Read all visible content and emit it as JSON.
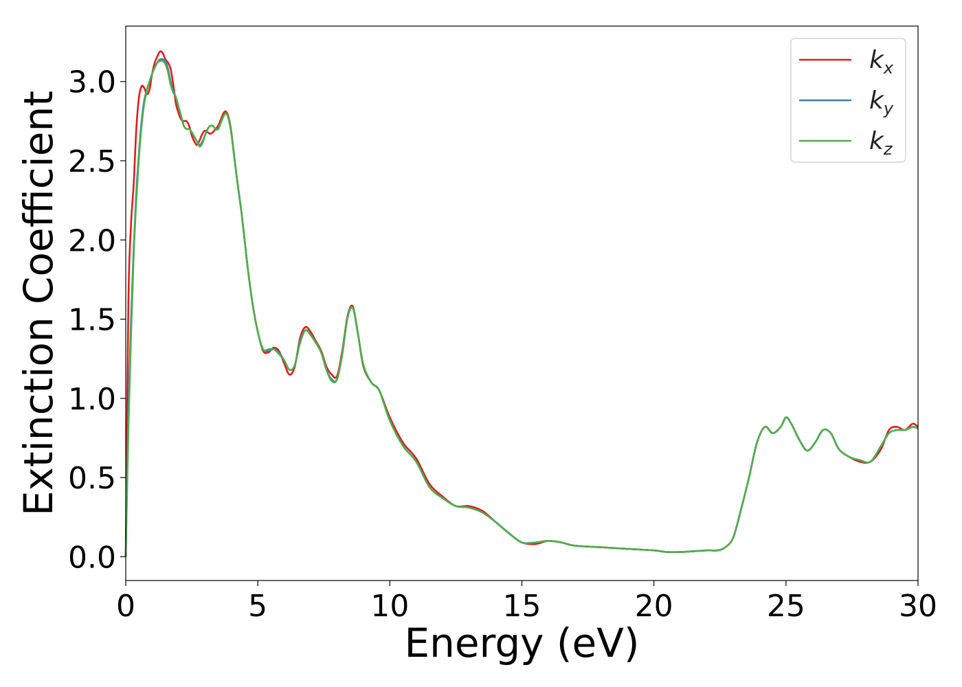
{
  "chart_data": {
    "type": "line",
    "xlabel": "Energy (eV)",
    "ylabel": "Extinction Coefficient",
    "xlim": [
      0,
      30
    ],
    "ylim": [
      -0.15,
      3.35
    ],
    "xticks": [
      "0",
      "5",
      "10",
      "15",
      "20",
      "25",
      "30"
    ],
    "yticks": [
      "0.0",
      "0.5",
      "1.0",
      "1.5",
      "2.0",
      "2.5",
      "3.0"
    ],
    "grid": false,
    "legend_position": "top-right",
    "series": [
      {
        "name": "k",
        "subscript": "x",
        "color": "#e31a1c",
        "x": [
          0,
          0.1,
          0.2,
          0.3,
          0.4,
          0.5,
          0.6,
          0.7,
          0.8,
          0.9,
          1.0,
          1.1,
          1.2,
          1.3,
          1.4,
          1.5,
          1.6,
          1.7,
          1.8,
          1.9,
          2.0,
          2.1,
          2.2,
          2.3,
          2.4,
          2.5,
          2.6,
          2.7,
          2.8,
          2.9,
          3.0,
          3.1,
          3.2,
          3.3,
          3.4,
          3.5,
          3.6,
          3.7,
          3.8,
          3.9,
          4.0,
          4.2,
          4.4,
          4.6,
          4.8,
          5.0,
          5.2,
          5.4,
          5.6,
          5.8,
          6.0,
          6.2,
          6.4,
          6.6,
          6.8,
          7.0,
          7.2,
          7.4,
          7.6,
          7.8,
          8.0,
          8.2,
          8.4,
          8.6,
          8.8,
          9.0,
          9.3,
          9.6,
          10.0,
          10.5,
          11.0,
          11.5,
          12.0,
          12.5,
          13.0,
          13.5,
          14.0,
          14.5,
          15.0,
          15.5,
          16.0,
          16.5,
          17.0,
          18.0,
          19.0,
          20.0,
          20.5,
          21.0,
          22.0,
          22.4,
          22.7,
          23.0,
          23.3,
          23.6,
          23.9,
          24.2,
          24.5,
          24.8,
          25.0,
          25.2,
          25.5,
          25.8,
          26.1,
          26.4,
          26.7,
          27.0,
          27.4,
          27.8,
          28.2,
          28.6,
          28.9,
          29.2,
          29.5,
          29.8,
          30.0
        ],
        "y": [
          0.0,
          1.6,
          2.1,
          2.35,
          2.7,
          2.9,
          2.97,
          2.96,
          2.92,
          2.95,
          3.05,
          3.12,
          3.16,
          3.19,
          3.18,
          3.14,
          3.12,
          3.08,
          2.98,
          2.86,
          2.8,
          2.76,
          2.75,
          2.75,
          2.72,
          2.66,
          2.62,
          2.6,
          2.63,
          2.67,
          2.69,
          2.68,
          2.67,
          2.68,
          2.7,
          2.72,
          2.76,
          2.8,
          2.81,
          2.77,
          2.68,
          2.4,
          2.15,
          1.85,
          1.6,
          1.42,
          1.3,
          1.29,
          1.32,
          1.3,
          1.22,
          1.15,
          1.2,
          1.38,
          1.45,
          1.42,
          1.36,
          1.3,
          1.2,
          1.15,
          1.14,
          1.3,
          1.52,
          1.58,
          1.4,
          1.2,
          1.1,
          1.05,
          0.88,
          0.72,
          0.62,
          0.46,
          0.38,
          0.32,
          0.32,
          0.29,
          0.22,
          0.15,
          0.09,
          0.08,
          0.1,
          0.09,
          0.07,
          0.06,
          0.05,
          0.04,
          0.03,
          0.03,
          0.04,
          0.04,
          0.06,
          0.12,
          0.3,
          0.5,
          0.72,
          0.82,
          0.78,
          0.82,
          0.88,
          0.84,
          0.74,
          0.67,
          0.72,
          0.8,
          0.78,
          0.68,
          0.63,
          0.6,
          0.6,
          0.68,
          0.8,
          0.82,
          0.8,
          0.84,
          0.82
        ],
        "name_suffix": ""
      },
      {
        "name": "k",
        "subscript": "y",
        "color": "#377eb8",
        "x": [
          0,
          0.1,
          0.2,
          0.3,
          0.4,
          0.5,
          0.6,
          0.7,
          0.8,
          0.9,
          1.0,
          1.1,
          1.2,
          1.3,
          1.4,
          1.5,
          1.6,
          1.7,
          1.8,
          1.9,
          2.0,
          2.1,
          2.2,
          2.3,
          2.4,
          2.5,
          2.6,
          2.7,
          2.8,
          2.9,
          3.0,
          3.1,
          3.2,
          3.3,
          3.4,
          3.5,
          3.6,
          3.7,
          3.8,
          3.9,
          4.0,
          4.2,
          4.4,
          4.6,
          4.8,
          5.0,
          5.2,
          5.4,
          5.6,
          5.8,
          6.0,
          6.2,
          6.4,
          6.6,
          6.8,
          7.0,
          7.2,
          7.4,
          7.6,
          7.8,
          8.0,
          8.2,
          8.4,
          8.6,
          8.8,
          9.0,
          9.3,
          9.6,
          10.0,
          10.5,
          11.0,
          11.5,
          12.0,
          12.5,
          13.0,
          13.5,
          14.0,
          14.5,
          15.0,
          15.5,
          16.0,
          16.5,
          17.0,
          18.0,
          19.0,
          20.0,
          20.5,
          21.0,
          22.0,
          22.4,
          22.7,
          23.0,
          23.3,
          23.6,
          23.9,
          24.2,
          24.5,
          24.8,
          25.0,
          25.2,
          25.5,
          25.8,
          26.1,
          26.4,
          26.7,
          27.0,
          27.4,
          27.8,
          28.2,
          28.6,
          28.9,
          29.2,
          29.5,
          29.8,
          30.0
        ],
        "y": [
          0.0,
          0.9,
          1.5,
          1.95,
          2.3,
          2.55,
          2.75,
          2.88,
          2.95,
          3.0,
          3.05,
          3.09,
          3.12,
          3.14,
          3.14,
          3.13,
          3.08,
          3.0,
          2.94,
          2.9,
          2.84,
          2.78,
          2.72,
          2.7,
          2.7,
          2.68,
          2.65,
          2.62,
          2.6,
          2.62,
          2.66,
          2.7,
          2.72,
          2.72,
          2.7,
          2.7,
          2.74,
          2.78,
          2.8,
          2.76,
          2.67,
          2.4,
          2.15,
          1.85,
          1.6,
          1.42,
          1.31,
          1.3,
          1.31,
          1.29,
          1.24,
          1.18,
          1.21,
          1.36,
          1.43,
          1.4,
          1.35,
          1.29,
          1.18,
          1.12,
          1.12,
          1.28,
          1.51,
          1.57,
          1.4,
          1.21,
          1.1,
          1.05,
          0.86,
          0.7,
          0.6,
          0.44,
          0.37,
          0.32,
          0.31,
          0.28,
          0.22,
          0.15,
          0.09,
          0.09,
          0.1,
          0.09,
          0.07,
          0.06,
          0.05,
          0.04,
          0.03,
          0.03,
          0.04,
          0.04,
          0.06,
          0.12,
          0.3,
          0.5,
          0.72,
          0.82,
          0.78,
          0.82,
          0.88,
          0.84,
          0.74,
          0.67,
          0.72,
          0.8,
          0.78,
          0.68,
          0.63,
          0.61,
          0.6,
          0.7,
          0.78,
          0.8,
          0.8,
          0.82,
          0.81
        ]
      },
      {
        "name": "k",
        "subscript": "z",
        "color": "#4daf4a",
        "x": [
          0,
          0.1,
          0.2,
          0.3,
          0.4,
          0.5,
          0.6,
          0.7,
          0.8,
          0.9,
          1.0,
          1.1,
          1.2,
          1.3,
          1.4,
          1.5,
          1.6,
          1.7,
          1.8,
          1.9,
          2.0,
          2.1,
          2.2,
          2.3,
          2.4,
          2.5,
          2.6,
          2.7,
          2.8,
          2.9,
          3.0,
          3.1,
          3.2,
          3.3,
          3.4,
          3.5,
          3.6,
          3.7,
          3.8,
          3.9,
          4.0,
          4.2,
          4.4,
          4.6,
          4.8,
          5.0,
          5.2,
          5.4,
          5.6,
          5.8,
          6.0,
          6.2,
          6.4,
          6.6,
          6.8,
          7.0,
          7.2,
          7.4,
          7.6,
          7.8,
          8.0,
          8.2,
          8.4,
          8.6,
          8.8,
          9.0,
          9.3,
          9.6,
          10.0,
          10.5,
          11.0,
          11.5,
          12.0,
          12.5,
          13.0,
          13.5,
          14.0,
          14.5,
          15.0,
          15.5,
          16.0,
          16.5,
          17.0,
          18.0,
          19.0,
          20.0,
          20.5,
          21.0,
          22.0,
          22.4,
          22.7,
          23.0,
          23.3,
          23.6,
          23.9,
          24.2,
          24.5,
          24.8,
          25.0,
          25.2,
          25.5,
          25.8,
          26.1,
          26.4,
          26.7,
          27.0,
          27.4,
          27.8,
          28.2,
          28.6,
          28.9,
          29.2,
          29.5,
          29.8,
          30.0
        ],
        "y": [
          0.0,
          0.8,
          1.4,
          1.9,
          2.25,
          2.52,
          2.72,
          2.86,
          2.94,
          3.0,
          3.05,
          3.09,
          3.12,
          3.13,
          3.13,
          3.11,
          3.06,
          2.98,
          2.93,
          2.9,
          2.84,
          2.78,
          2.72,
          2.7,
          2.7,
          2.68,
          2.65,
          2.62,
          2.59,
          2.61,
          2.66,
          2.7,
          2.72,
          2.72,
          2.7,
          2.7,
          2.74,
          2.78,
          2.8,
          2.76,
          2.67,
          2.4,
          2.15,
          1.85,
          1.6,
          1.42,
          1.31,
          1.31,
          1.31,
          1.28,
          1.24,
          1.18,
          1.21,
          1.35,
          1.43,
          1.4,
          1.35,
          1.29,
          1.18,
          1.11,
          1.12,
          1.28,
          1.51,
          1.57,
          1.4,
          1.21,
          1.1,
          1.05,
          0.86,
          0.7,
          0.6,
          0.44,
          0.37,
          0.32,
          0.31,
          0.28,
          0.22,
          0.15,
          0.09,
          0.09,
          0.1,
          0.09,
          0.07,
          0.06,
          0.05,
          0.04,
          0.03,
          0.03,
          0.04,
          0.04,
          0.06,
          0.12,
          0.3,
          0.5,
          0.72,
          0.82,
          0.78,
          0.82,
          0.88,
          0.84,
          0.74,
          0.67,
          0.72,
          0.8,
          0.78,
          0.68,
          0.63,
          0.61,
          0.6,
          0.7,
          0.78,
          0.8,
          0.8,
          0.82,
          0.81
        ]
      }
    ]
  }
}
